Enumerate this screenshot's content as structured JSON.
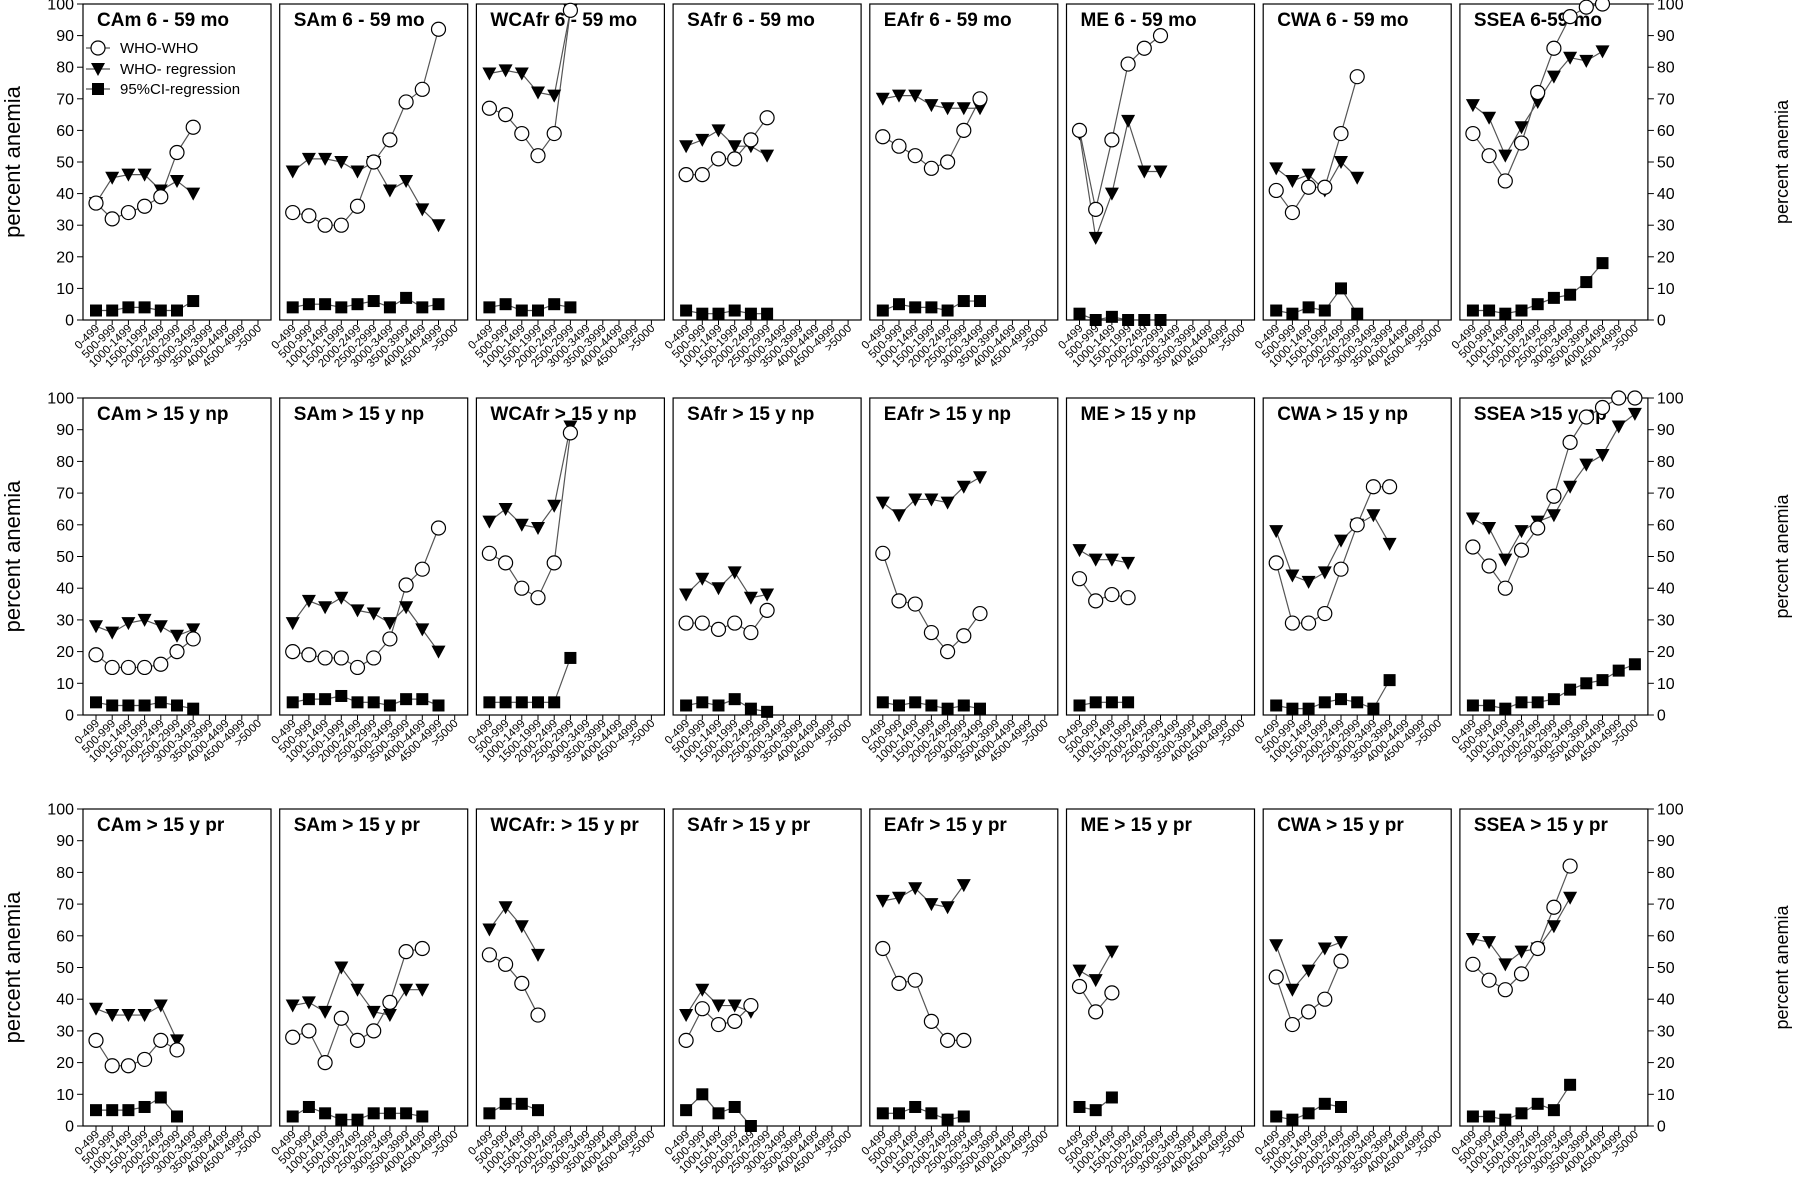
{
  "y_axis_label": "percent anemia",
  "legend": [
    {
      "name": "WHO-WHO",
      "marker": "open-circle"
    },
    {
      "name": "WHO- regression",
      "marker": "filled-triangle-down"
    },
    {
      "name": "95%CI-regression",
      "marker": "filled-square"
    }
  ],
  "chart_data": {
    "type": "line",
    "layout": "small-multiples 3 rows x 8 columns",
    "ylim": [
      0,
      100
    ],
    "yticks": [
      0,
      10,
      20,
      30,
      40,
      50,
      60,
      70,
      80,
      90,
      100
    ],
    "categories": [
      "0-499",
      "500-999",
      "1000-1499",
      "1500-1999",
      "2000-2499",
      "2500-2999",
      "3000-3499",
      "3500-3999",
      "4000-4499",
      "4500-4999",
      ">5000"
    ],
    "series_names": [
      "WHO-WHO",
      "WHO- regression",
      "95%CI-regression"
    ],
    "panels": [
      {
        "title": "CAm 6 - 59 mo",
        "who": [
          37,
          32,
          34,
          36,
          39,
          53,
          61
        ],
        "reg": [
          37,
          45,
          46,
          46,
          41,
          44,
          40
        ],
        "ci": [
          3,
          3,
          4,
          4,
          3,
          3,
          6
        ]
      },
      {
        "title": "SAm 6 - 59 mo",
        "who": [
          34,
          33,
          30,
          30,
          36,
          50,
          57,
          69,
          73,
          92
        ],
        "reg": [
          47,
          51,
          51,
          50,
          47,
          50,
          41,
          44,
          35,
          30
        ],
        "ci": [
          4,
          5,
          5,
          4,
          5,
          6,
          4,
          7,
          4,
          5
        ]
      },
      {
        "title": "WCAfr 6 - 59 mo",
        "who": [
          67,
          65,
          59,
          52,
          59,
          98
        ],
        "reg": [
          78,
          79,
          78,
          72,
          71,
          98
        ],
        "ci": [
          4,
          5,
          3,
          3,
          5,
          4
        ]
      },
      {
        "title": "SAfr 6 - 59 mo",
        "who": [
          46,
          46,
          51,
          51,
          57,
          64
        ],
        "reg": [
          55,
          57,
          60,
          55,
          55,
          52
        ],
        "ci": [
          3,
          2,
          2,
          3,
          2,
          2
        ]
      },
      {
        "title": "EAfr 6 - 59 mo",
        "who": [
          58,
          55,
          52,
          48,
          50,
          60,
          70
        ],
        "reg": [
          70,
          71,
          71,
          68,
          67,
          67,
          67
        ],
        "ci": [
          3,
          5,
          4,
          4,
          3,
          6,
          6
        ]
      },
      {
        "title": "ME 6 - 59 mo",
        "who": [
          60,
          35,
          57,
          81,
          86,
          90
        ],
        "reg": [
          59,
          26,
          40,
          63,
          47,
          47
        ],
        "ci": [
          2,
          0,
          1,
          0,
          0,
          0
        ]
      },
      {
        "title": "CWA 6 - 59 mo",
        "who": [
          41,
          34,
          42,
          42,
          59,
          77
        ],
        "reg": [
          48,
          44,
          46,
          41,
          50,
          45
        ],
        "ci": [
          3,
          2,
          4,
          3,
          10,
          2
        ]
      },
      {
        "title": "SSEA 6-59 mo",
        "who": [
          59,
          52,
          44,
          56,
          72,
          86,
          96,
          99,
          100
        ],
        "reg": [
          68,
          64,
          52,
          61,
          69,
          77,
          83,
          82,
          85
        ],
        "ci": [
          3,
          3,
          2,
          3,
          5,
          7,
          8,
          12,
          18
        ]
      },
      {
        "title": "CAm > 15 y np",
        "who": [
          19,
          15,
          15,
          15,
          16,
          20,
          24
        ],
        "reg": [
          28,
          26,
          29,
          30,
          28,
          25,
          27
        ],
        "ci": [
          4,
          3,
          3,
          3,
          4,
          3,
          2
        ]
      },
      {
        "title": "SAm > 15 y np",
        "who": [
          20,
          19,
          18,
          18,
          15,
          18,
          24,
          41,
          46,
          59
        ],
        "reg": [
          29,
          36,
          34,
          37,
          33,
          32,
          29,
          34,
          27,
          20
        ],
        "ci": [
          4,
          5,
          5,
          6,
          4,
          4,
          3,
          5,
          5,
          3
        ]
      },
      {
        "title": "WCAfr > 15 y np",
        "who": [
          51,
          48,
          40,
          37,
          48,
          89
        ],
        "reg": [
          61,
          65,
          60,
          59,
          66,
          91
        ],
        "ci": [
          4,
          4,
          4,
          4,
          4,
          18
        ]
      },
      {
        "title": "SAfr > 15 y np",
        "who": [
          29,
          29,
          27,
          29,
          26,
          33
        ],
        "reg": [
          38,
          43,
          40,
          45,
          37,
          38
        ],
        "ci": [
          3,
          4,
          3,
          5,
          2,
          1
        ]
      },
      {
        "title": "EAfr > 15 y np",
        "who": [
          51,
          36,
          35,
          26,
          20,
          25,
          32
        ],
        "reg": [
          67,
          63,
          68,
          68,
          67,
          72,
          75
        ],
        "ci": [
          4,
          3,
          4,
          3,
          2,
          3,
          2
        ]
      },
      {
        "title": "ME > 15 y np",
        "who": [
          43,
          36,
          38,
          37
        ],
        "reg": [
          52,
          49,
          49,
          48
        ],
        "ci": [
          3,
          4,
          4,
          4
        ]
      },
      {
        "title": "CWA > 15 y np",
        "who": [
          48,
          29,
          29,
          32,
          46,
          60,
          72,
          72
        ],
        "reg": [
          58,
          44,
          42,
          45,
          55,
          60,
          63,
          54
        ],
        "ci": [
          3,
          2,
          2,
          4,
          5,
          4,
          2,
          11
        ]
      },
      {
        "title": "SSEA >15 y np",
        "who": [
          53,
          47,
          40,
          52,
          59,
          69,
          86,
          94,
          97,
          100,
          100
        ],
        "reg": [
          62,
          59,
          49,
          58,
          61,
          63,
          72,
          79,
          82,
          91,
          95
        ],
        "ci": [
          3,
          3,
          2,
          4,
          4,
          5,
          8,
          10,
          11,
          14,
          16
        ]
      },
      {
        "title": "CAm > 15 y pr",
        "who": [
          27,
          19,
          19,
          21,
          27,
          24
        ],
        "reg": [
          37,
          35,
          35,
          35,
          38,
          27
        ],
        "ci": [
          5,
          5,
          5,
          6,
          9,
          3
        ]
      },
      {
        "title": "SAm > 15 y pr",
        "who": [
          28,
          30,
          20,
          34,
          27,
          30,
          39,
          55,
          56
        ],
        "reg": [
          38,
          39,
          36,
          50,
          43,
          36,
          35,
          43,
          43
        ],
        "ci": [
          3,
          6,
          4,
          2,
          2,
          4,
          4,
          4,
          3
        ]
      },
      {
        "title": "WCAfr: > 15 y pr",
        "who": [
          54,
          51,
          45,
          35
        ],
        "reg": [
          62,
          69,
          63,
          54
        ],
        "ci": [
          4,
          7,
          7,
          5
        ]
      },
      {
        "title": "SAfr > 15 y pr",
        "who": [
          27,
          37,
          32,
          33,
          38
        ],
        "reg": [
          35,
          43,
          38,
          38,
          36
        ],
        "ci": [
          5,
          10,
          4,
          6,
          0
        ]
      },
      {
        "title": "EAfr > 15 y pr",
        "who": [
          56,
          45,
          46,
          33,
          27,
          27
        ],
        "reg": [
          71,
          72,
          75,
          70,
          69,
          76
        ],
        "ci": [
          4,
          4,
          6,
          4,
          2,
          3
        ]
      },
      {
        "title": "ME > 15 y pr",
        "who": [
          44,
          36,
          42
        ],
        "reg": [
          49,
          46,
          55
        ],
        "ci": [
          6,
          5,
          9
        ]
      },
      {
        "title": "CWA > 15 y pr",
        "who": [
          47,
          32,
          36,
          40,
          52
        ],
        "reg": [
          57,
          43,
          49,
          56,
          58
        ],
        "ci": [
          3,
          2,
          4,
          7,
          6
        ]
      },
      {
        "title": "SSEA > 15 y pr",
        "who": [
          51,
          46,
          43,
          48,
          56,
          69,
          82
        ],
        "reg": [
          59,
          58,
          51,
          55,
          56,
          63,
          72
        ],
        "ci": [
          3,
          3,
          2,
          4,
          7,
          5,
          13
        ]
      }
    ]
  }
}
